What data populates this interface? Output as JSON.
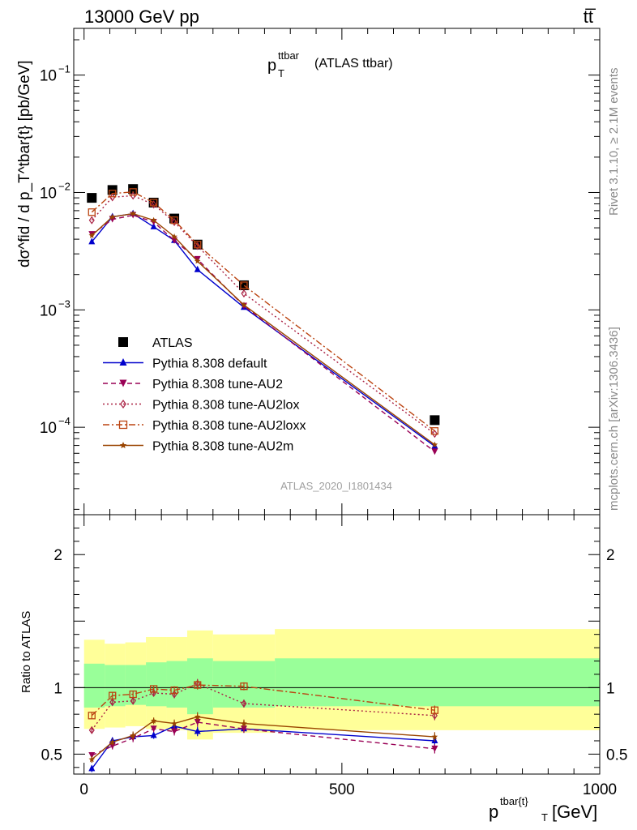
{
  "header": {
    "left": "13000 GeV pp",
    "right": "tt̅"
  },
  "side_text": {
    "rivet": "Rivet 3.1.10, ≥ 2.1M events",
    "mcplots": "mcplots.cern.ch [arXiv:1306.3436]"
  },
  "chart_data": [
    {
      "type": "line",
      "panel": "main",
      "title": "p_T^ttbar (ATLAS ttbar)",
      "title_main": "p",
      "title_sup": "ttbar",
      "title_sub": "T",
      "title_rest": "(ATLAS ttbar)",
      "analysis_label": "ATLAS_2020_I1801434",
      "ylabel": "dσ^fid / d p_T^tbar{t} [pb/GeV]",
      "yscale": "log",
      "ylim": [
        1.8e-05,
        0.25
      ],
      "xlim": [
        -20,
        1000
      ],
      "yticks": [
        {
          "label": "10⁻¹",
          "base": "10",
          "exp": "−1",
          "value": 0.1
        },
        {
          "label": "10⁻²",
          "base": "10",
          "exp": "−2",
          "value": 0.01
        },
        {
          "label": "10⁻³",
          "base": "10",
          "exp": "−3",
          "value": 0.001
        },
        {
          "label": "10⁻⁴",
          "base": "10",
          "exp": "−4",
          "value": 0.0001
        }
      ],
      "legend_position": "middle-left",
      "x": [
        15,
        55,
        95,
        135,
        175,
        220,
        310,
        680
      ],
      "series": [
        {
          "name": "ATLAS",
          "style": "data",
          "color": "#000000",
          "marker": "square",
          "values": [
            0.009,
            0.0105,
            0.0107,
            0.0082,
            0.006,
            0.0036,
            0.00162,
            0.000115
          ]
        },
        {
          "name": "Pythia 8.308 default",
          "style": "solid",
          "color": "#0000cc",
          "marker": "triangle-up",
          "values": [
            0.0038,
            0.0062,
            0.0066,
            0.0051,
            0.0039,
            0.0022,
            0.00105,
            6.9e-05
          ]
        },
        {
          "name": "Pythia 8.308 tune-AU2",
          "style": "dashed",
          "color": "#990055",
          "marker": "triangle-down",
          "values": [
            0.0044,
            0.0059,
            0.0064,
            0.0056,
            0.0039,
            0.0027,
            0.00108,
            6.2e-05
          ]
        },
        {
          "name": "Pythia 8.308 tune-AU2lox",
          "style": "dotted",
          "color": "#aa2244",
          "marker": "diamond-open",
          "values": [
            0.0058,
            0.0091,
            0.0094,
            0.0079,
            0.0056,
            0.0035,
            0.00138,
            8.8e-05
          ]
        },
        {
          "name": "Pythia 8.308 tune-AU2loxx",
          "style": "dashdot",
          "color": "#bb4411",
          "marker": "square-open",
          "values": [
            0.0068,
            0.0098,
            0.0101,
            0.0082,
            0.0058,
            0.0036,
            0.00162,
            9.3e-05
          ]
        },
        {
          "name": "Pythia 8.308 tune-AU2m",
          "style": "solid",
          "color": "#994400",
          "marker": "star",
          "values": [
            0.0043,
            0.0062,
            0.0066,
            0.0058,
            0.0042,
            0.0026,
            0.0011,
            7.1e-05
          ]
        }
      ]
    },
    {
      "type": "line",
      "panel": "ratio",
      "ylabel": "Ratio to ATLAS",
      "ylim": [
        0.35,
        2.3
      ],
      "xlim": [
        -20,
        1000
      ],
      "yticks": [
        0.5,
        1,
        2
      ],
      "xticks": [
        0,
        500,
        1000
      ],
      "xlabel": "p_T^tbar{t} [GeV]",
      "xlabel_main": "p",
      "xlabel_sup": "tbar{t}",
      "xlabel_sub": "T",
      "xlabel_rest": "[GeV]",
      "bins": [
        [
          0,
          40
        ],
        [
          40,
          80
        ],
        [
          80,
          120
        ],
        [
          120,
          160
        ],
        [
          160,
          200
        ],
        [
          200,
          250
        ],
        [
          250,
          370
        ],
        [
          370,
          1000
        ]
      ],
      "band_inner": [
        [
          0.85,
          1.18
        ],
        [
          0.86,
          1.17
        ],
        [
          0.87,
          1.17
        ],
        [
          0.86,
          1.19
        ],
        [
          0.85,
          1.2
        ],
        [
          0.8,
          1.22
        ],
        [
          0.85,
          1.2
        ],
        [
          0.86,
          1.22
        ]
      ],
      "band_outer": [
        [
          0.69,
          1.36
        ],
        [
          0.7,
          1.33
        ],
        [
          0.71,
          1.34
        ],
        [
          0.69,
          1.38
        ],
        [
          0.68,
          1.38
        ],
        [
          0.61,
          1.43
        ],
        [
          0.66,
          1.4
        ],
        [
          0.68,
          1.44
        ]
      ],
      "band_colors": {
        "inner": "#99ff99",
        "outer": "#ffff99"
      },
      "x": [
        15,
        55,
        95,
        135,
        175,
        220,
        310,
        680
      ],
      "series": [
        {
          "name": "Pythia 8.308 default",
          "values": [
            0.39,
            0.6,
            0.63,
            0.64,
            0.71,
            0.67,
            0.69,
            0.6
          ]
        },
        {
          "name": "Pythia 8.308 tune-AU2",
          "values": [
            0.49,
            0.56,
            0.62,
            0.69,
            0.67,
            0.74,
            0.69,
            0.54
          ]
        },
        {
          "name": "Pythia 8.308 tune-AU2lox",
          "values": [
            0.68,
            0.89,
            0.9,
            0.96,
            0.95,
            1.03,
            0.88,
            0.79
          ]
        },
        {
          "name": "Pythia 8.308 tune-AU2loxx",
          "values": [
            0.79,
            0.94,
            0.95,
            0.99,
            0.98,
            1.02,
            1.01,
            0.83
          ]
        },
        {
          "name": "Pythia 8.308 tune-AU2m",
          "values": [
            0.46,
            0.59,
            0.64,
            0.75,
            0.73,
            0.78,
            0.73,
            0.63
          ]
        }
      ],
      "errors": [
        {
          "name": "Pythia 8.308 default",
          "values": [
            0.025,
            0.025,
            0.03,
            0.025,
            0.03,
            0.035,
            0.03,
            0.035
          ]
        },
        {
          "name": "Pythia 8.308 tune-AU2",
          "values": [
            0.025,
            0.025,
            0.03,
            0.025,
            0.03,
            0.035,
            0.03,
            0.035
          ]
        },
        {
          "name": "Pythia 8.308 tune-AU2lox",
          "values": [
            0.025,
            0.025,
            0.025,
            0.025,
            0.03,
            0.035,
            0.03,
            0.035
          ]
        },
        {
          "name": "Pythia 8.308 tune-AU2loxx",
          "values": [
            0.025,
            0.025,
            0.025,
            0.025,
            0.03,
            0.035,
            0.03,
            0.035
          ]
        },
        {
          "name": "Pythia 8.308 tune-AU2m",
          "values": [
            0.025,
            0.025,
            0.03,
            0.025,
            0.03,
            0.035,
            0.03,
            0.035
          ]
        }
      ]
    }
  ]
}
